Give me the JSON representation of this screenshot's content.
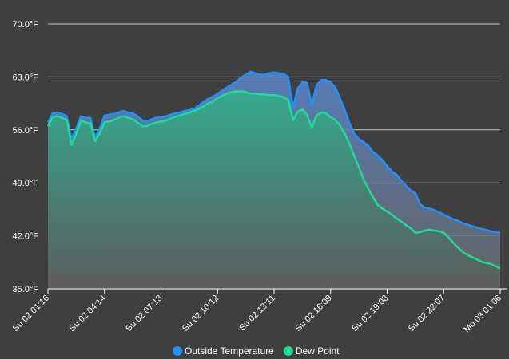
{
  "chart_data": {
    "type": "area",
    "y_unit": "°F",
    "ylim": [
      35.0,
      70.0
    ],
    "y_ticks": [
      "70.0°F",
      "63.0°F",
      "56.0°F",
      "49.0°F",
      "42.0°F",
      "35.0°F"
    ],
    "x_tick_labels": [
      "Su 02 01:16",
      "Su 02 04:14",
      "Su 02 07:13",
      "Su 02 10:12",
      "Su 02 13:11",
      "Su 02 16:09",
      "Su 02 19:08",
      "Su 02 22:07",
      "Mo 03 01:06"
    ],
    "grid": true,
    "legend_position": "bottom",
    "x_hours": [
      0,
      0.25,
      0.5,
      0.75,
      1.0,
      1.25,
      1.5,
      1.75,
      2.0,
      2.25,
      2.5,
      2.75,
      3.0,
      3.25,
      3.5,
      3.75,
      4.0,
      4.25,
      4.5,
      4.75,
      5.0,
      5.25,
      5.5,
      5.75,
      6.0,
      6.25,
      6.5,
      6.75,
      7.0,
      7.25,
      7.5,
      7.75,
      8.0,
      8.25,
      8.5,
      8.75,
      9.0,
      9.25,
      9.5,
      9.75,
      10.0,
      10.25,
      10.5,
      10.75,
      11.0,
      11.25,
      11.5,
      11.75,
      12.0,
      12.25,
      12.5,
      12.75,
      13.0,
      13.25,
      13.5,
      13.75,
      14.0,
      14.25,
      14.5,
      14.75,
      15.0,
      15.25,
      15.5,
      15.75,
      16.0,
      16.25,
      16.5,
      16.75,
      17.0,
      17.25,
      17.5,
      17.75,
      18.0,
      18.25,
      18.5,
      18.75,
      19.0,
      19.25,
      19.5,
      19.75,
      20.0,
      20.25,
      20.5,
      20.75,
      21.0,
      21.25,
      21.5,
      21.75,
      22.0,
      22.25,
      22.5,
      22.75,
      23.0,
      23.25,
      23.5,
      23.75,
      24.0
    ],
    "series": [
      {
        "name": "Outside Temperature",
        "color": "#1e90ff",
        "values": [
          57.0,
          58.2,
          58.3,
          58.1,
          57.8,
          54.8,
          56.2,
          57.8,
          57.6,
          57.6,
          55.0,
          56.2,
          57.9,
          58.0,
          58.1,
          58.3,
          58.5,
          58.3,
          58.2,
          57.8,
          57.3,
          57.1,
          57.4,
          57.6,
          57.7,
          57.8,
          58.0,
          58.2,
          58.3,
          58.5,
          58.6,
          58.8,
          59.2,
          59.7,
          60.1,
          60.4,
          60.8,
          61.2,
          61.6,
          62.0,
          62.4,
          62.9,
          63.3,
          63.7,
          63.5,
          63.3,
          63.3,
          63.5,
          63.6,
          63.5,
          63.4,
          63.0,
          58.9,
          61.5,
          62.3,
          62.2,
          59.3,
          61.9,
          62.6,
          62.6,
          62.3,
          61.6,
          60.2,
          58.6,
          56.9,
          55.5,
          54.8,
          54.4,
          53.9,
          53.1,
          52.6,
          52.0,
          51.2,
          50.5,
          50.1,
          49.3,
          48.6,
          48.0,
          47.6,
          46.2,
          45.7,
          45.6,
          45.4,
          45.1,
          44.8,
          44.5,
          44.2,
          44.0,
          43.7,
          43.5,
          43.3,
          43.1,
          42.9,
          42.8,
          42.6,
          42.5,
          42.4
        ]
      },
      {
        "name": "Dew Point",
        "color": "#1edc96",
        "values": [
          56.5,
          57.7,
          57.8,
          57.6,
          57.3,
          54.0,
          55.5,
          57.2,
          57.0,
          56.9,
          54.5,
          55.6,
          57.0,
          57.1,
          57.3,
          57.6,
          57.8,
          57.6,
          57.4,
          57.0,
          56.5,
          56.5,
          56.8,
          57.0,
          57.1,
          57.2,
          57.5,
          57.7,
          57.9,
          58.1,
          58.3,
          58.5,
          58.8,
          59.1,
          59.5,
          59.8,
          60.2,
          60.5,
          60.8,
          61.0,
          61.1,
          61.1,
          61.0,
          60.8,
          60.8,
          60.7,
          60.7,
          60.6,
          60.6,
          60.5,
          60.3,
          60.0,
          57.3,
          58.4,
          58.7,
          58.0,
          56.3,
          57.9,
          58.3,
          58.2,
          57.7,
          57.3,
          56.6,
          55.5,
          54.2,
          52.6,
          51.1,
          49.5,
          48.2,
          47.1,
          46.1,
          45.6,
          45.2,
          44.8,
          44.3,
          43.9,
          43.4,
          43.0,
          42.4,
          42.5,
          42.7,
          42.8,
          42.7,
          42.6,
          42.4,
          41.8,
          41.1,
          40.5,
          39.9,
          39.5,
          39.2,
          38.9,
          38.6,
          38.4,
          38.3,
          38.0,
          37.7
        ]
      }
    ],
    "legend": [
      {
        "label": "Outside Temperature",
        "color": "#1e90ff"
      },
      {
        "label": "Dew Point",
        "color": "#1edc96"
      }
    ]
  }
}
